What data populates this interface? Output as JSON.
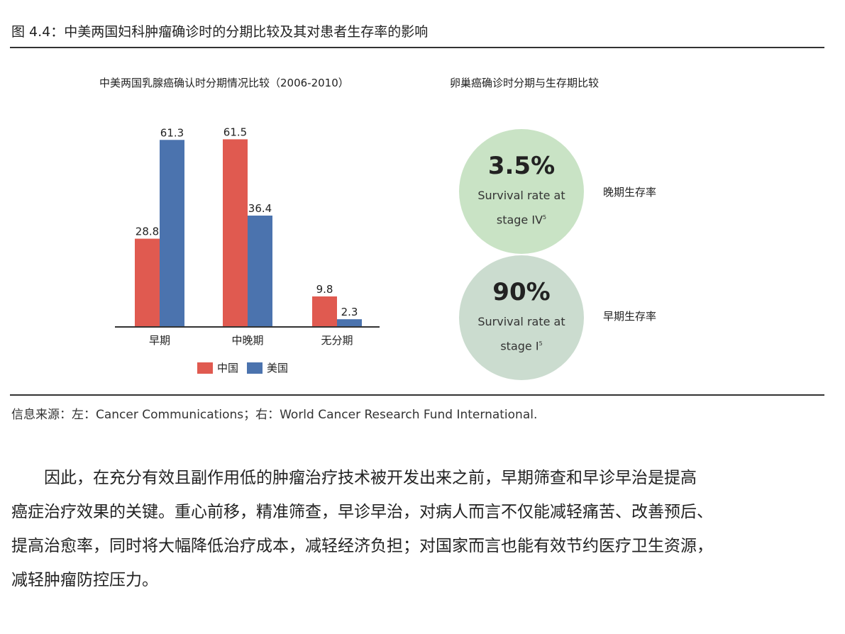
{
  "figure_title": "图 4.4：中美两国妇科肿瘤确诊时的分期比较及其对患者生存率的影响",
  "left_chart_title": "中美两国乳腺癌确认时分期情况比较（2006-2010）",
  "right_chart_title": "卵巢癌确诊时分期与生存期比较",
  "chart_data": {
    "type": "bar",
    "title": "中美两国乳腺癌确认时分期情况比较（2006-2010）",
    "categories": [
      "早期",
      "中晚期",
      "无分期"
    ],
    "series": [
      {
        "name": "中国",
        "color": "#e05a50",
        "values": [
          28.8,
          61.5,
          9.8
        ],
        "labels": [
          "28.8",
          "61.5",
          "9.8"
        ]
      },
      {
        "name": "美国",
        "color": "#4b73ae",
        "values": [
          61.3,
          36.4,
          2.3
        ],
        "labels": [
          "61.3",
          "36.4",
          "2.3"
        ]
      }
    ],
    "ylim": [
      0,
      70
    ],
    "grid": false,
    "legend_position": "bottom-center"
  },
  "survival": [
    {
      "value": "3.5%",
      "line1": "Survival rate at",
      "line2": "stage IV",
      "sup": "5",
      "side_label": "晚期生存率",
      "color": "#c9e3c5"
    },
    {
      "value": "90%",
      "line1": "Survival rate at",
      "line2": "stage I",
      "sup": "5",
      "side_label": "早期生存率",
      "color": "#cbdccf"
    }
  ],
  "source": "信息来源：左：Cancer Communications；右：World Cancer Research Fund International.",
  "paragraph": [
    "　　因此，在充分有效且副作用低的肿瘤治疗技术被开发出来之前，早期筛查和早诊早治是提高",
    "癌症治疗效果的关键。重心前移，精准筛查，早诊早治，对病人而言不仅能减轻痛苦、改善预后、",
    "提高治愈率，同时将大幅降低治疗成本，减轻经济负担；对国家而言也能有效节约医疗卫生资源，",
    "减轻肿瘤防控压力。"
  ]
}
